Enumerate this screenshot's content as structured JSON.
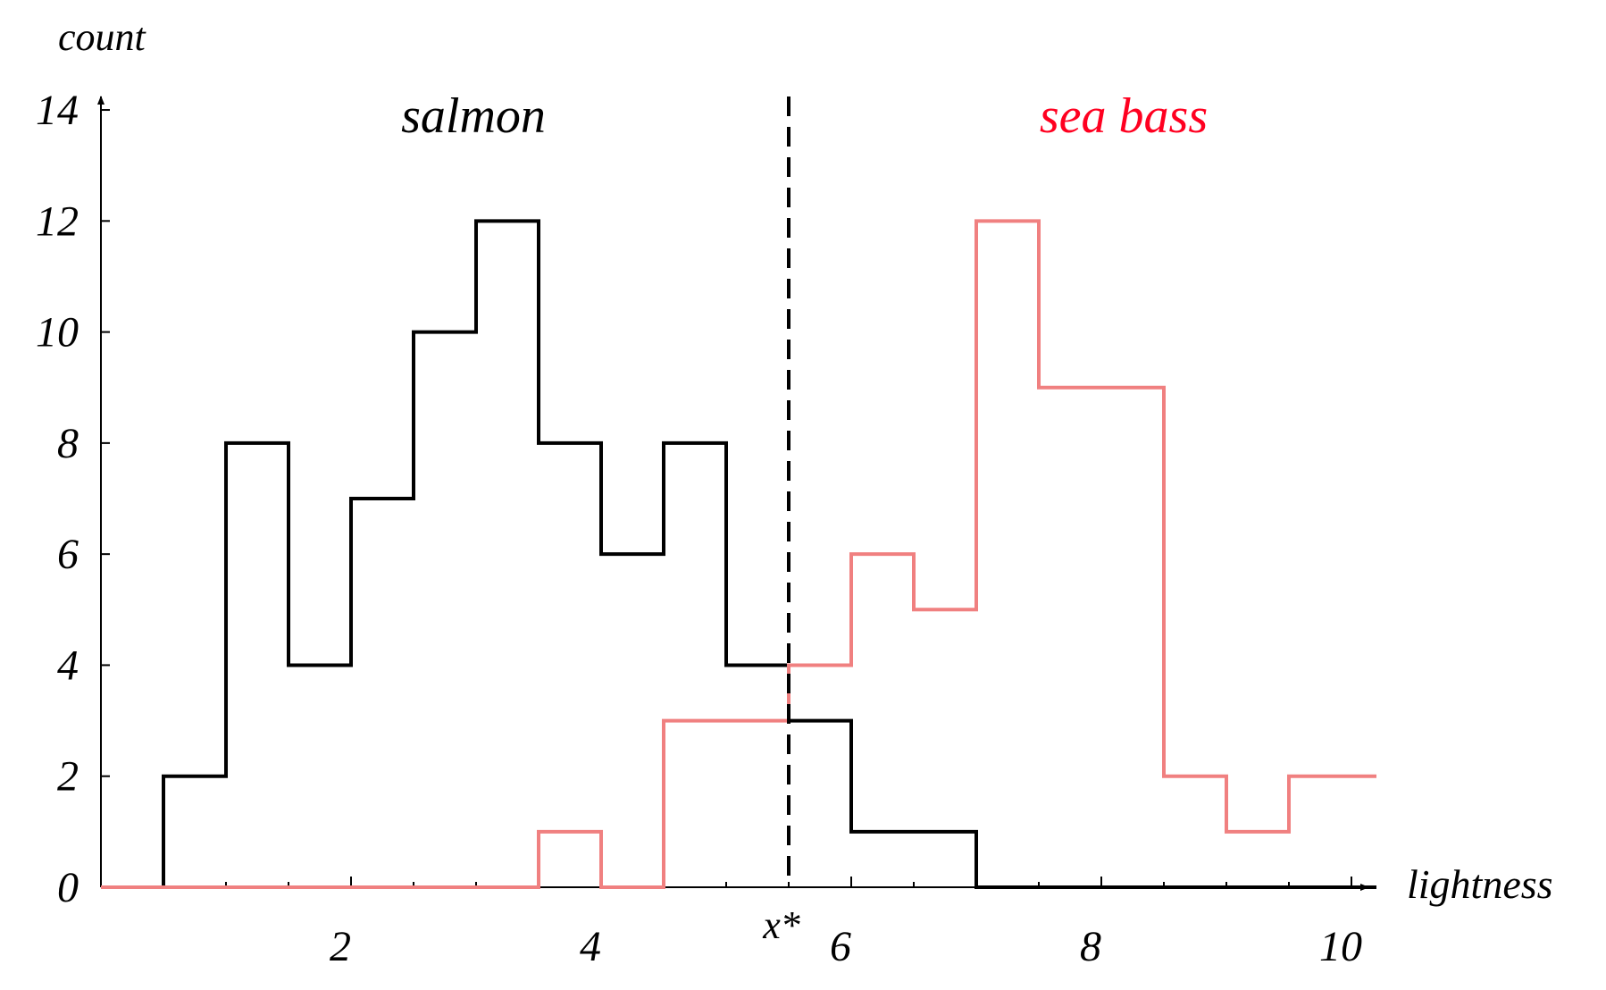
{
  "chart_data": {
    "type": "step",
    "title": "",
    "xlabel": "lightness",
    "ylabel": "count",
    "xlim": [
      0,
      10.2
    ],
    "ylim": [
      0,
      14
    ],
    "x_ticks": [
      2,
      4,
      6,
      8,
      10
    ],
    "y_ticks": [
      0,
      2,
      4,
      6,
      8,
      10,
      12,
      14
    ],
    "threshold": {
      "label": "x*",
      "x": 5.5
    },
    "series": [
      {
        "name": "salmon",
        "color": "#000000",
        "bin_edges": [
          0,
          0.5,
          1,
          1.5,
          2,
          2.5,
          3,
          3.5,
          4,
          4.5,
          5,
          5.5,
          6,
          6.5,
          7,
          7.5,
          8,
          8.5,
          9,
          9.5,
          10.2
        ],
        "counts": [
          0,
          2,
          8,
          4,
          7,
          10,
          12,
          8,
          6,
          8,
          4,
          3,
          1,
          1,
          0,
          0,
          0,
          0,
          0,
          0
        ]
      },
      {
        "name": "sea bass",
        "color": "#ff0020",
        "line_color": "#f08080",
        "bin_edges": [
          0,
          0.5,
          1,
          1.5,
          2,
          2.5,
          3,
          3.5,
          4,
          4.5,
          5,
          5.5,
          6,
          6.5,
          7,
          7.5,
          8,
          8.5,
          9,
          9.5,
          10.2
        ],
        "counts": [
          0,
          0,
          0,
          0,
          0,
          0,
          0,
          1,
          0,
          3,
          3,
          4,
          6,
          5,
          12,
          9,
          9,
          2,
          1,
          2
        ]
      }
    ]
  }
}
